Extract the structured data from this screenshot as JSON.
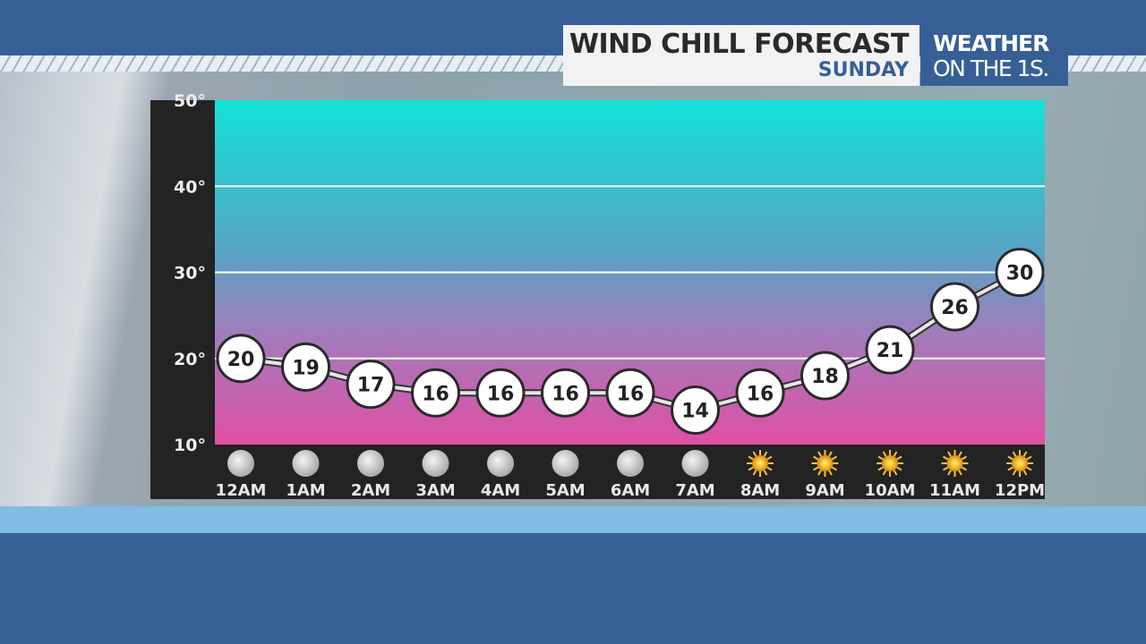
{
  "header": {
    "title": "WIND CHILL FORECAST",
    "subtitle": "SUNDAY",
    "brand_line1": "WEATHER",
    "brand_line2": "ON THE 1S."
  },
  "colors": {
    "top_gradient": "#12e2d8",
    "bottom_gradient": "#e04fa4",
    "brand_blue": "#365f96",
    "band": "#80bde4"
  },
  "chart_data": {
    "type": "line",
    "title": "WIND CHILL FORECAST",
    "subtitle": "SUNDAY",
    "categories": [
      "12AM",
      "1AM",
      "2AM",
      "3AM",
      "4AM",
      "5AM",
      "6AM",
      "7AM",
      "8AM",
      "9AM",
      "10AM",
      "11AM",
      "12PM"
    ],
    "icons": [
      "moon-icon",
      "moon-icon",
      "moon-icon",
      "moon-icon",
      "moon-icon",
      "moon-icon",
      "moon-icon",
      "moon-icon",
      "sun-icon",
      "sun-icon",
      "sun-icon",
      "sun-icon",
      "sun-icon"
    ],
    "values": [
      20,
      19,
      17,
      16,
      16,
      16,
      16,
      14,
      16,
      18,
      21,
      26,
      30
    ],
    "ylim": [
      10,
      50
    ],
    "yticks": [
      "10°",
      "20°",
      "30°",
      "40°",
      "50°"
    ],
    "grid": true,
    "data_labels": true
  }
}
